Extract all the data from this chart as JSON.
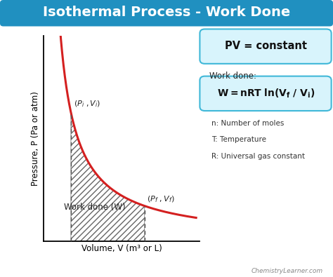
{
  "title": "Isothermal Process - Work Done",
  "title_bg_color": "#2090C0",
  "title_text_color": "#ffffff",
  "bg_color": "#ffffff",
  "curve_color": "#d42020",
  "hatch_color": "#666666",
  "xlabel": "Volume, V (m³ or L)",
  "ylabel": "Pressure, P (Pa or atm)",
  "pv_box_bg": "#d8f4fc",
  "pv_box_edge": "#40b8d8",
  "work_box_bg": "#d8f4fc",
  "work_box_edge": "#40b8d8",
  "work_done_label": "Work done:",
  "formula_line1": "n: Number of moles",
  "formula_line2": "T: Temperature",
  "formula_line3": "R: Universal gas constant",
  "watermark": "ChemistryLearner.com",
  "Vi": 1.5,
  "Vf": 5.5,
  "k": 8.0,
  "xlim": [
    0,
    8.5
  ],
  "ylim": [
    0,
    8.5
  ]
}
